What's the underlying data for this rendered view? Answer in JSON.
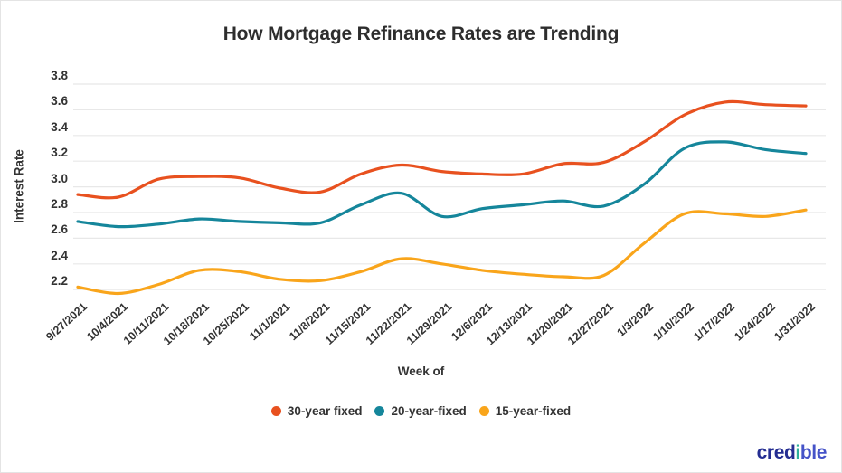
{
  "chart_data": {
    "type": "line",
    "title": "How Mortgage Refinance Rates are Trending",
    "xlabel": "Week of",
    "ylabel": "Interest Rate",
    "categories": [
      "9/27/2021",
      "10/4/2021",
      "10/11/2021",
      "10/18/2021",
      "10/25/2021",
      "11/1/2021",
      "11/8/2021",
      "11/15/2021",
      "11/22/2021",
      "11/29/2021",
      "12/6/2021",
      "12/13/2021",
      "12/20/2021",
      "12/27/2021",
      "1/3/2022",
      "1/10/2022",
      "1/17/2022",
      "1/24/2022",
      "1/31/2022"
    ],
    "series": [
      {
        "name": "30-year fixed",
        "color": "#E8511F",
        "values": [
          2.94,
          2.92,
          3.06,
          3.08,
          3.07,
          2.99,
          2.96,
          3.1,
          3.17,
          3.12,
          3.1,
          3.1,
          3.18,
          3.19,
          3.35,
          3.56,
          3.66,
          3.64,
          3.63
        ]
      },
      {
        "name": "20-year-fixed",
        "color": "#15869B",
        "values": [
          2.73,
          2.69,
          2.71,
          2.75,
          2.73,
          2.72,
          2.72,
          2.86,
          2.95,
          2.77,
          2.83,
          2.86,
          2.89,
          2.85,
          3.02,
          3.3,
          3.35,
          3.29,
          3.26
        ]
      },
      {
        "name": "15-year-fixed",
        "color": "#F9A51B",
        "values": [
          2.22,
          2.17,
          2.24,
          2.35,
          2.34,
          2.28,
          2.27,
          2.34,
          2.44,
          2.4,
          2.35,
          2.32,
          2.3,
          2.31,
          2.56,
          2.79,
          2.79,
          2.77,
          2.82
        ]
      }
    ],
    "yticks": [
      "3.8",
      "3.6",
      "3.4",
      "3.2",
      "3.0",
      "2.8",
      "2.6",
      "2.4",
      "2.2"
    ],
    "ylim": [
      2.2,
      3.8
    ],
    "ytick_step": 0.2,
    "grid": "horizontal",
    "legend_position": "bottom"
  },
  "colors": {
    "grid": "#E8E8E8",
    "text": "#333333"
  },
  "logo": {
    "part1": "cred",
    "part2": "i",
    "part3": "ble",
    "color_main": "#252E92",
    "color_accent": "#2FB09C",
    "color_suffix": "#4553C8"
  }
}
